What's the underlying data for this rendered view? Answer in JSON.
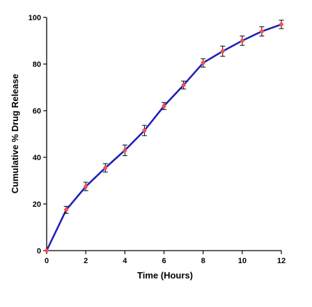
{
  "chart_data": {
    "type": "line",
    "title": "",
    "xlabel": "Time (Hours)",
    "ylabel": "Cumulative % Drug Release",
    "xlim": [
      0,
      12
    ],
    "ylim": [
      0,
      100
    ],
    "xticks": [
      0,
      2,
      4,
      6,
      8,
      10,
      12
    ],
    "yticks": [
      0,
      20,
      40,
      60,
      80,
      100
    ],
    "grid": false,
    "legend": "none",
    "colors": {
      "line": "#1f1fb4",
      "marker": "#ff4b4b",
      "errorbar": "#000000"
    },
    "series": [
      {
        "x": [
          0,
          1,
          2,
          3,
          4,
          5,
          6,
          7,
          8,
          9,
          10,
          11,
          12
        ],
        "y": [
          0,
          17.5,
          27.5,
          35.5,
          43,
          51.5,
          62,
          71,
          80.5,
          85.5,
          90,
          94,
          97
        ],
        "error": [
          0,
          1.5,
          1.8,
          1.8,
          2.3,
          2.2,
          1.5,
          1.7,
          1.8,
          2.2,
          2.0,
          2.0,
          1.8
        ]
      }
    ]
  }
}
